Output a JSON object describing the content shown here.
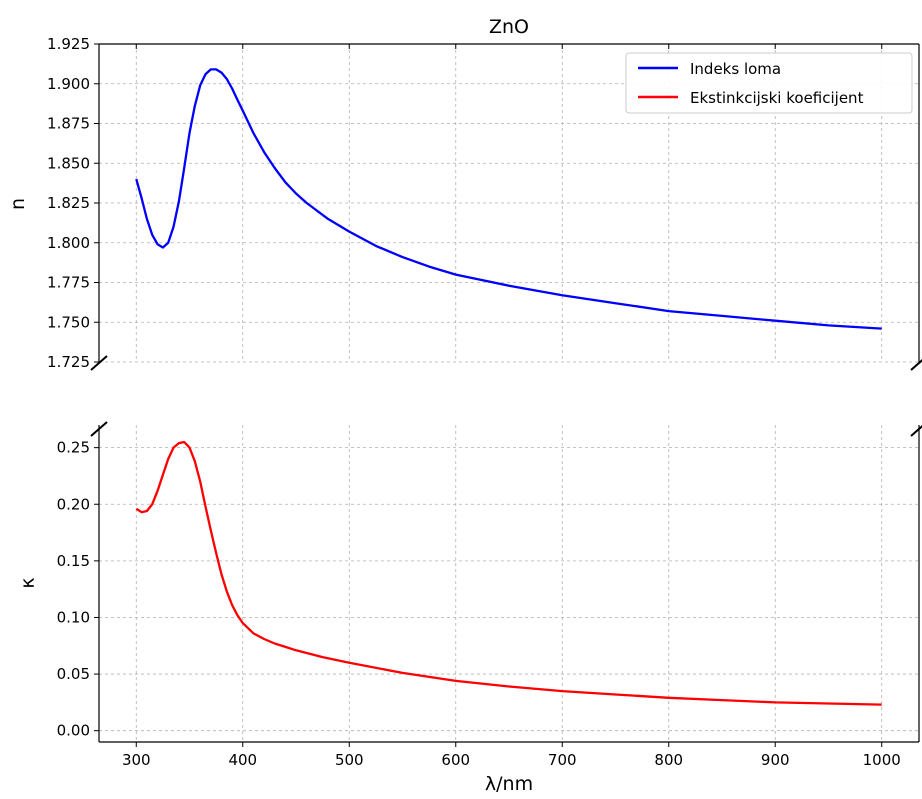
{
  "chart_data": [
    {
      "type": "line",
      "title": "ZnO",
      "xlabel": "",
      "ylabel": "n",
      "xlim": [
        265,
        1035
      ],
      "ylim": [
        1.725,
        1.925
      ],
      "xticks": [
        300,
        400,
        500,
        600,
        700,
        800,
        900,
        1000
      ],
      "yticks": [
        1.725,
        1.75,
        1.775,
        1.8,
        1.825,
        1.85,
        1.875,
        1.9,
        1.925
      ],
      "ytick_labels": [
        "1.725",
        "1.750",
        "1.775",
        "1.800",
        "1.825",
        "1.850",
        "1.875",
        "1.900",
        "1.925"
      ],
      "grid": true,
      "legend_position": "top-right",
      "series": [
        {
          "name": "Indeks loma",
          "color": "#0000ff",
          "x": [
            300,
            305,
            310,
            315,
            320,
            325,
            330,
            335,
            340,
            345,
            350,
            355,
            360,
            365,
            370,
            375,
            380,
            385,
            390,
            395,
            400,
            410,
            420,
            430,
            440,
            450,
            460,
            480,
            500,
            525,
            550,
            575,
            600,
            650,
            700,
            750,
            800,
            850,
            900,
            950,
            1000
          ],
          "y": [
            1.84,
            1.828,
            1.815,
            1.805,
            1.799,
            1.797,
            1.8,
            1.81,
            1.826,
            1.847,
            1.869,
            1.886,
            1.899,
            1.906,
            1.909,
            1.909,
            1.907,
            1.903,
            1.897,
            1.89,
            1.883,
            1.869,
            1.857,
            1.847,
            1.838,
            1.831,
            1.825,
            1.815,
            1.807,
            1.798,
            1.791,
            1.785,
            1.78,
            1.773,
            1.767,
            1.762,
            1.757,
            1.754,
            1.751,
            1.748,
            1.746
          ]
        }
      ]
    },
    {
      "type": "line",
      "title": "",
      "xlabel": "λ/nm",
      "ylabel": "κ",
      "xlim": [
        265,
        1035
      ],
      "ylim": [
        -0.01,
        0.27
      ],
      "xticks": [
        300,
        400,
        500,
        600,
        700,
        800,
        900,
        1000
      ],
      "xtick_labels": [
        "300",
        "400",
        "500",
        "600",
        "700",
        "800",
        "900",
        "1000"
      ],
      "yticks": [
        0.0,
        0.05,
        0.1,
        0.15,
        0.2,
        0.25
      ],
      "ytick_labels": [
        "0.00",
        "0.05",
        "0.10",
        "0.15",
        "0.20",
        "0.25"
      ],
      "grid": true,
      "series": [
        {
          "name": "Ekstinkcijski koeficijent",
          "color": "#ff0000",
          "x": [
            300,
            305,
            310,
            315,
            320,
            325,
            330,
            335,
            340,
            345,
            350,
            355,
            360,
            365,
            370,
            375,
            380,
            385,
            390,
            395,
            400,
            410,
            420,
            430,
            440,
            450,
            475,
            500,
            550,
            600,
            650,
            700,
            750,
            800,
            850,
            900,
            950,
            1000
          ],
          "y": [
            0.196,
            0.193,
            0.194,
            0.2,
            0.212,
            0.226,
            0.24,
            0.25,
            0.254,
            0.255,
            0.25,
            0.238,
            0.22,
            0.198,
            0.177,
            0.157,
            0.138,
            0.123,
            0.111,
            0.102,
            0.095,
            0.086,
            0.081,
            0.077,
            0.074,
            0.071,
            0.065,
            0.06,
            0.051,
            0.044,
            0.039,
            0.035,
            0.032,
            0.029,
            0.027,
            0.025,
            0.024,
            0.023
          ]
        }
      ]
    }
  ]
}
